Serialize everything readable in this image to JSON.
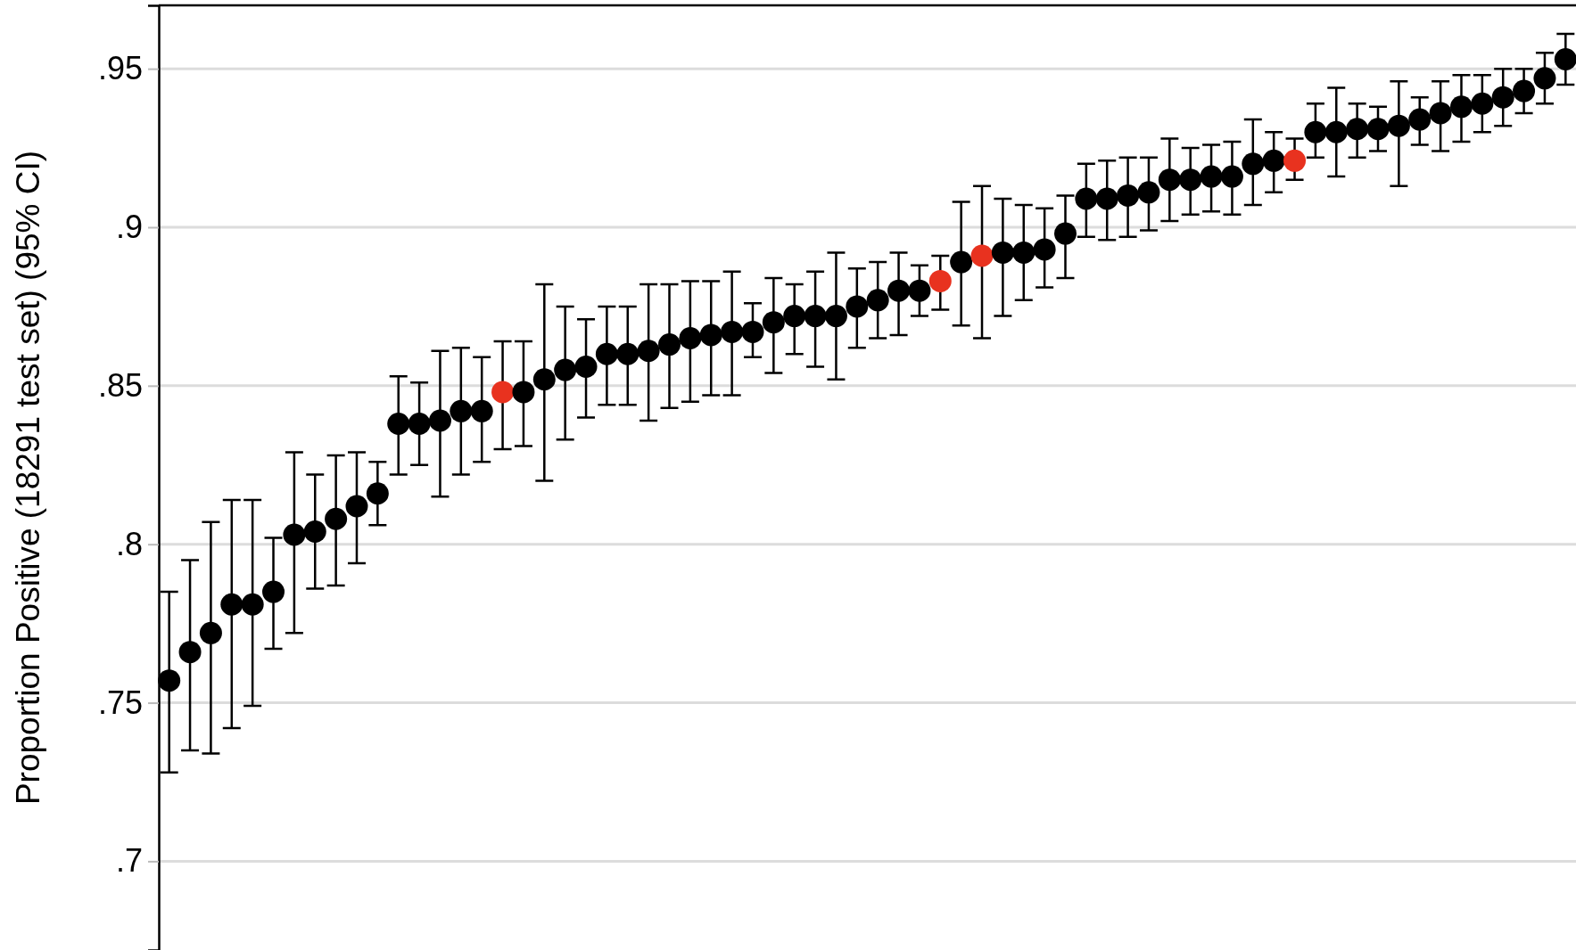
{
  "chart_data": {
    "type": "scatter",
    "ylabel": "Proportion Positive (18291 test set) (95% CI)",
    "categories": [
      null,
      null,
      null,
      null,
      null,
      null,
      null,
      null,
      null,
      null,
      null,
      null,
      null,
      null,
      null,
      null,
      null,
      null,
      null,
      null,
      null,
      null,
      null,
      null,
      null,
      null,
      null,
      null,
      null,
      null,
      null,
      null,
      null,
      null,
      null,
      null,
      null,
      null,
      null,
      null,
      null,
      null,
      null,
      null,
      null,
      null,
      null,
      null,
      null,
      null,
      null,
      null,
      null,
      null,
      null,
      null,
      null,
      null,
      null,
      null,
      null,
      null,
      null,
      null,
      null,
      null,
      null,
      null
    ],
    "values": [
      0.757,
      0.766,
      0.772,
      0.781,
      0.781,
      0.785,
      0.803,
      0.804,
      0.808,
      0.812,
      0.816,
      0.838,
      0.838,
      0.839,
      0.842,
      0.842,
      0.848,
      0.848,
      0.852,
      0.855,
      0.856,
      0.86,
      0.86,
      0.861,
      0.863,
      0.865,
      0.866,
      0.867,
      0.867,
      0.87,
      0.872,
      0.872,
      0.872,
      0.875,
      0.877,
      0.88,
      0.88,
      0.883,
      0.889,
      0.891,
      0.892,
      0.892,
      0.893,
      0.898,
      0.909,
      0.909,
      0.91,
      0.911,
      0.915,
      0.915,
      0.916,
      0.916,
      0.92,
      0.921,
      0.921,
      0.93,
      0.93,
      0.931,
      0.931,
      0.932,
      0.934,
      0.936,
      0.938,
      0.939,
      0.941,
      0.943,
      0.947,
      0.953
    ],
    "errors": [
      [
        0.728,
        0.785
      ],
      [
        0.735,
        0.795
      ],
      [
        0.734,
        0.807
      ],
      [
        0.742,
        0.814
      ],
      [
        0.749,
        0.814
      ],
      [
        0.767,
        0.802
      ],
      [
        0.772,
        0.829
      ],
      [
        0.786,
        0.822
      ],
      [
        0.787,
        0.828
      ],
      [
        0.794,
        0.829
      ],
      [
        0.806,
        0.826
      ],
      [
        0.822,
        0.853
      ],
      [
        0.825,
        0.851
      ],
      [
        0.815,
        0.861
      ],
      [
        0.822,
        0.862
      ],
      [
        0.826,
        0.859
      ],
      [
        0.83,
        0.864
      ],
      [
        0.831,
        0.864
      ],
      [
        0.82,
        0.882
      ],
      [
        0.833,
        0.875
      ],
      [
        0.84,
        0.871
      ],
      [
        0.844,
        0.875
      ],
      [
        0.844,
        0.875
      ],
      [
        0.839,
        0.882
      ],
      [
        0.843,
        0.882
      ],
      [
        0.845,
        0.883
      ],
      [
        0.847,
        0.883
      ],
      [
        0.847,
        0.886
      ],
      [
        0.859,
        0.876
      ],
      [
        0.854,
        0.884
      ],
      [
        0.86,
        0.882
      ],
      [
        0.856,
        0.886
      ],
      [
        0.852,
        0.892
      ],
      [
        0.862,
        0.887
      ],
      [
        0.865,
        0.889
      ],
      [
        0.866,
        0.892
      ],
      [
        0.872,
        0.888
      ],
      [
        0.874,
        0.891
      ],
      [
        0.869,
        0.908
      ],
      [
        0.865,
        0.913
      ],
      [
        0.872,
        0.909
      ],
      [
        0.877,
        0.907
      ],
      [
        0.881,
        0.906
      ],
      [
        0.884,
        0.91
      ],
      [
        0.897,
        0.92
      ],
      [
        0.896,
        0.921
      ],
      [
        0.897,
        0.922
      ],
      [
        0.899,
        0.922
      ],
      [
        0.902,
        0.928
      ],
      [
        0.904,
        0.925
      ],
      [
        0.905,
        0.926
      ],
      [
        0.904,
        0.927
      ],
      [
        0.907,
        0.934
      ],
      [
        0.911,
        0.93
      ],
      [
        0.915,
        0.928
      ],
      [
        0.922,
        0.939
      ],
      [
        0.916,
        0.944
      ],
      [
        0.922,
        0.939
      ],
      [
        0.924,
        0.938
      ],
      [
        0.913,
        0.946
      ],
      [
        0.926,
        0.941
      ],
      [
        0.924,
        0.946
      ],
      [
        0.927,
        0.948
      ],
      [
        0.93,
        0.948
      ],
      [
        0.932,
        0.95
      ],
      [
        0.936,
        0.95
      ],
      [
        0.939,
        0.955
      ],
      [
        0.945,
        0.961
      ]
    ],
    "colors": [
      "#000000",
      "#000000",
      "#000000",
      "#000000",
      "#000000",
      "#000000",
      "#000000",
      "#000000",
      "#000000",
      "#000000",
      "#000000",
      "#000000",
      "#000000",
      "#000000",
      "#000000",
      "#000000",
      "#e8321f",
      "#000000",
      "#000000",
      "#000000",
      "#000000",
      "#000000",
      "#000000",
      "#000000",
      "#000000",
      "#000000",
      "#000000",
      "#000000",
      "#000000",
      "#000000",
      "#000000",
      "#000000",
      "#000000",
      "#000000",
      "#000000",
      "#000000",
      "#000000",
      "#e8321f",
      "#000000",
      "#e8321f",
      "#000000",
      "#000000",
      "#000000",
      "#000000",
      "#000000",
      "#000000",
      "#000000",
      "#000000",
      "#000000",
      "#000000",
      "#000000",
      "#000000",
      "#000000",
      "#000000",
      "#e8321f",
      "#000000",
      "#000000",
      "#000000",
      "#000000",
      "#000000",
      "#000000",
      "#000000",
      "#000000",
      "#000000",
      "#000000",
      "#000000",
      "#000000",
      "#000000"
    ],
    "ylim": [
      0.672,
      0.97
    ],
    "yticks": [
      {
        "value": 0.7,
        "label": ".7"
      },
      {
        "value": 0.75,
        "label": ".75"
      },
      {
        "value": 0.8,
        "label": ".8"
      },
      {
        "value": 0.85,
        "label": ".85"
      },
      {
        "value": 0.9,
        "label": ".9"
      },
      {
        "value": 0.95,
        "label": ".95"
      }
    ],
    "grid": "y",
    "marker": "circle"
  }
}
